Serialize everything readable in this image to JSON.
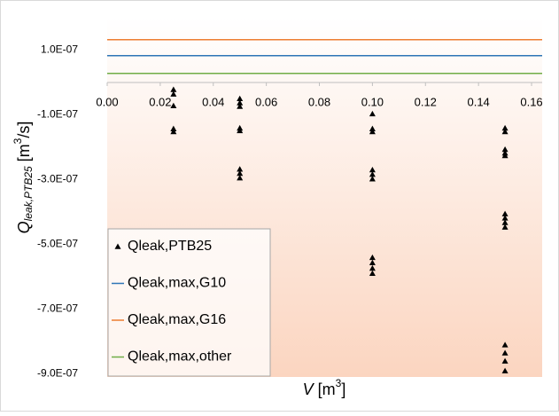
{
  "chart_data": {
    "type": "scatter",
    "xlabel": [
      "V",
      " [m",
      "3",
      "]"
    ],
    "ylabel": [
      "Q",
      "leak,PTB25",
      " [m",
      "3",
      "/s]"
    ],
    "xlim": [
      0,
      0.164
    ],
    "ylim": [
      -9.1e-07,
      2e-07
    ],
    "xticks": [
      {
        "value": 0,
        "label": "0.00"
      },
      {
        "value": 0.02,
        "label": "0.02"
      },
      {
        "value": 0.04,
        "label": "0.04"
      },
      {
        "value": 0.06,
        "label": "0.06"
      },
      {
        "value": 0.08,
        "label": "0.08"
      },
      {
        "value": 0.1,
        "label": "0.10"
      },
      {
        "value": 0.12,
        "label": "0.12"
      },
      {
        "value": 0.14,
        "label": "0.14"
      },
      {
        "value": 0.16,
        "label": "0.16"
      }
    ],
    "yticks": [
      {
        "value": 1e-07,
        "label": "1.0E-07"
      },
      {
        "value": -1e-07,
        "label": "-1.0E-07"
      },
      {
        "value": -3e-07,
        "label": "-3.0E-07"
      },
      {
        "value": -5e-07,
        "label": "-5.0E-07"
      },
      {
        "value": -7e-07,
        "label": "-7.0E-07"
      },
      {
        "value": -9e-07,
        "label": "-9.0E-07"
      }
    ],
    "series": [
      {
        "name": "Qleak,PTB25",
        "color": "#000000",
        "marker": "triangle",
        "x": [
          0.025,
          0.025,
          0.025,
          0.025,
          0.025,
          0.05,
          0.05,
          0.05,
          0.05,
          0.05,
          0.05,
          0.05,
          0.05,
          0.1,
          0.1,
          0.1,
          0.1,
          0.1,
          0.1,
          0.1,
          0.1,
          0.1,
          0.1,
          0.15,
          0.15,
          0.15,
          0.15,
          0.15,
          0.15,
          0.15,
          0.15,
          0.15,
          0.15,
          0.15,
          0.15,
          0.15
        ],
        "values": [
          -2.2e-08,
          -3.6e-08,
          -7.2e-08,
          -1.43e-07,
          -1.52e-07,
          -5e-08,
          -6.3e-08,
          -7.4e-08,
          -1.41e-07,
          -1.49e-07,
          -2.68e-07,
          -2.81e-07,
          -2.95e-07,
          -9.7e-08,
          -1.43e-07,
          -1.52e-07,
          -2.7e-07,
          -2.84e-07,
          -2.98e-07,
          -5.41e-07,
          -5.57e-07,
          -5.74e-07,
          -5.9e-07,
          -1.41e-07,
          -1.52e-07,
          -2.07e-07,
          -2.18e-07,
          -2.26e-07,
          -4.06e-07,
          -4.19e-07,
          -4.33e-07,
          -4.47e-07,
          -8.11e-07,
          -8.36e-07,
          -8.61e-07,
          -8.91e-07
        ]
      },
      {
        "name": "Qleak,max,G10",
        "color": "#2e75b6",
        "value": 8.3e-08
      },
      {
        "name": "Qleak,max,G16",
        "color": "#ed7d31",
        "value": 1.32e-07
      },
      {
        "name": "Qleak,max,other",
        "color": "#70ad47",
        "value": 2.8e-08
      }
    ],
    "legend": "lower-left"
  }
}
